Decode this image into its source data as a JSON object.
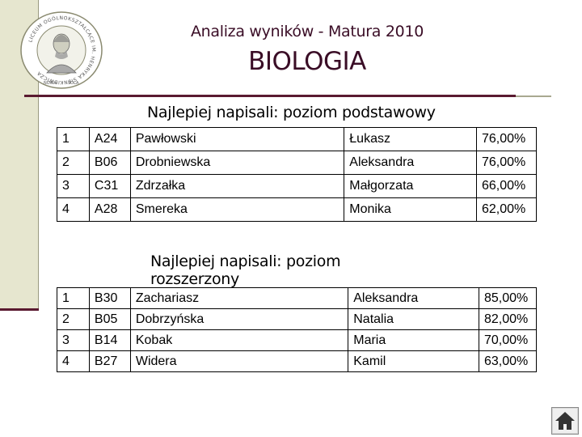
{
  "header": {
    "subtitle": "Analiza wyników - Matura 2010",
    "title": "BIOLOGIA"
  },
  "logo": {
    "ring_text": "LICEUM OGÓLNOKSZTAŁCĄCE IM. HENRYKA SIENKIEWICZA",
    "motto_left": "NOWA",
    "motto_right": "SOLA"
  },
  "section_basic": {
    "heading": "Najlepiej napisali: poziom podstawowy",
    "rows": [
      {
        "rank": "1",
        "code": "A24",
        "surname": "Pawłowski",
        "name": "Łukasz",
        "score": "76,00%"
      },
      {
        "rank": "2",
        "code": "B06",
        "surname": "Drobniewska",
        "name": "Aleksandra",
        "score": "76,00%"
      },
      {
        "rank": "3",
        "code": "C31",
        "surname": "Zdrzałka",
        "name": "Małgorzata",
        "score": "66,00%"
      },
      {
        "rank": "4",
        "code": "A28",
        "surname": "Smereka",
        "name": "Monika",
        "score": "62,00%"
      }
    ]
  },
  "section_extended": {
    "heading": "Najlepiej napisali: poziom rozszerzony",
    "rows": [
      {
        "rank": "1",
        "code": "B30",
        "surname": "Zachariasz",
        "name": "Aleksandra",
        "score": "85,00%"
      },
      {
        "rank": "2",
        "code": "B05",
        "surname": "Dobrzyńska",
        "name": "Natalia",
        "score": "82,00%"
      },
      {
        "rank": "3",
        "code": "B14",
        "surname": "Kobak",
        "name": "Maria",
        "score": "70,00%"
      },
      {
        "rank": "4",
        "code": "B27",
        "surname": "Widera",
        "name": "Kamil",
        "score": "63,00%"
      }
    ]
  },
  "colors": {
    "accent": "#5a1a30",
    "sidebar": "#e6e6cf",
    "title_text": "#3a0d26"
  },
  "nav": {
    "icon": "home-icon"
  }
}
